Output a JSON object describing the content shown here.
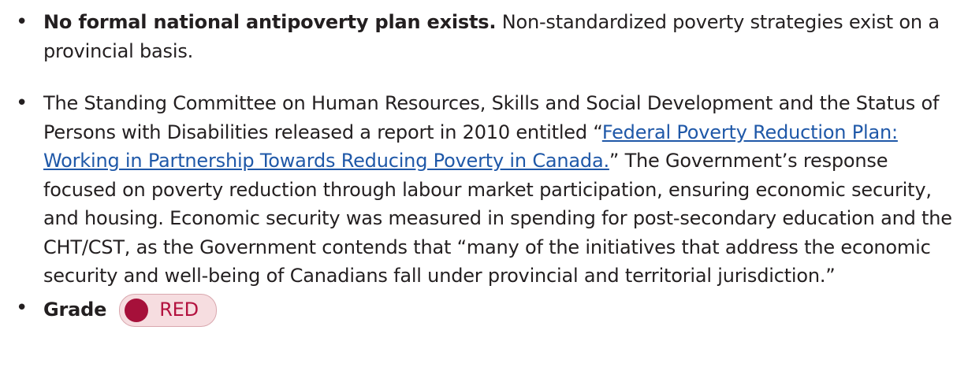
{
  "bullets": [
    {
      "bold": "No formal national antipoverty plan exists.",
      "text": "Non-standardized poverty strategies exist on a provincial basis."
    },
    {
      "before": "The Standing Committee on Human Resources, Skills and Social Development and the Status of Persons with Disabilities released a report in 2010 entitled “",
      "link": "Federal Poverty Reduction Plan: Working in Partnership Towards Reducing Poverty in Canada.",
      "after": "” The Government’s response focused on poverty reduction through labour market participation, ensuring economic security, and housing. Economic security was measured in spending for post-secondary education and the CHT/CST, as the Government contends that “many of the initiatives that address the economic security and well-being of Canadians fall under provincial and territorial jurisdiction.”"
    }
  ],
  "grade": {
    "label": "Grade",
    "value": "RED"
  }
}
